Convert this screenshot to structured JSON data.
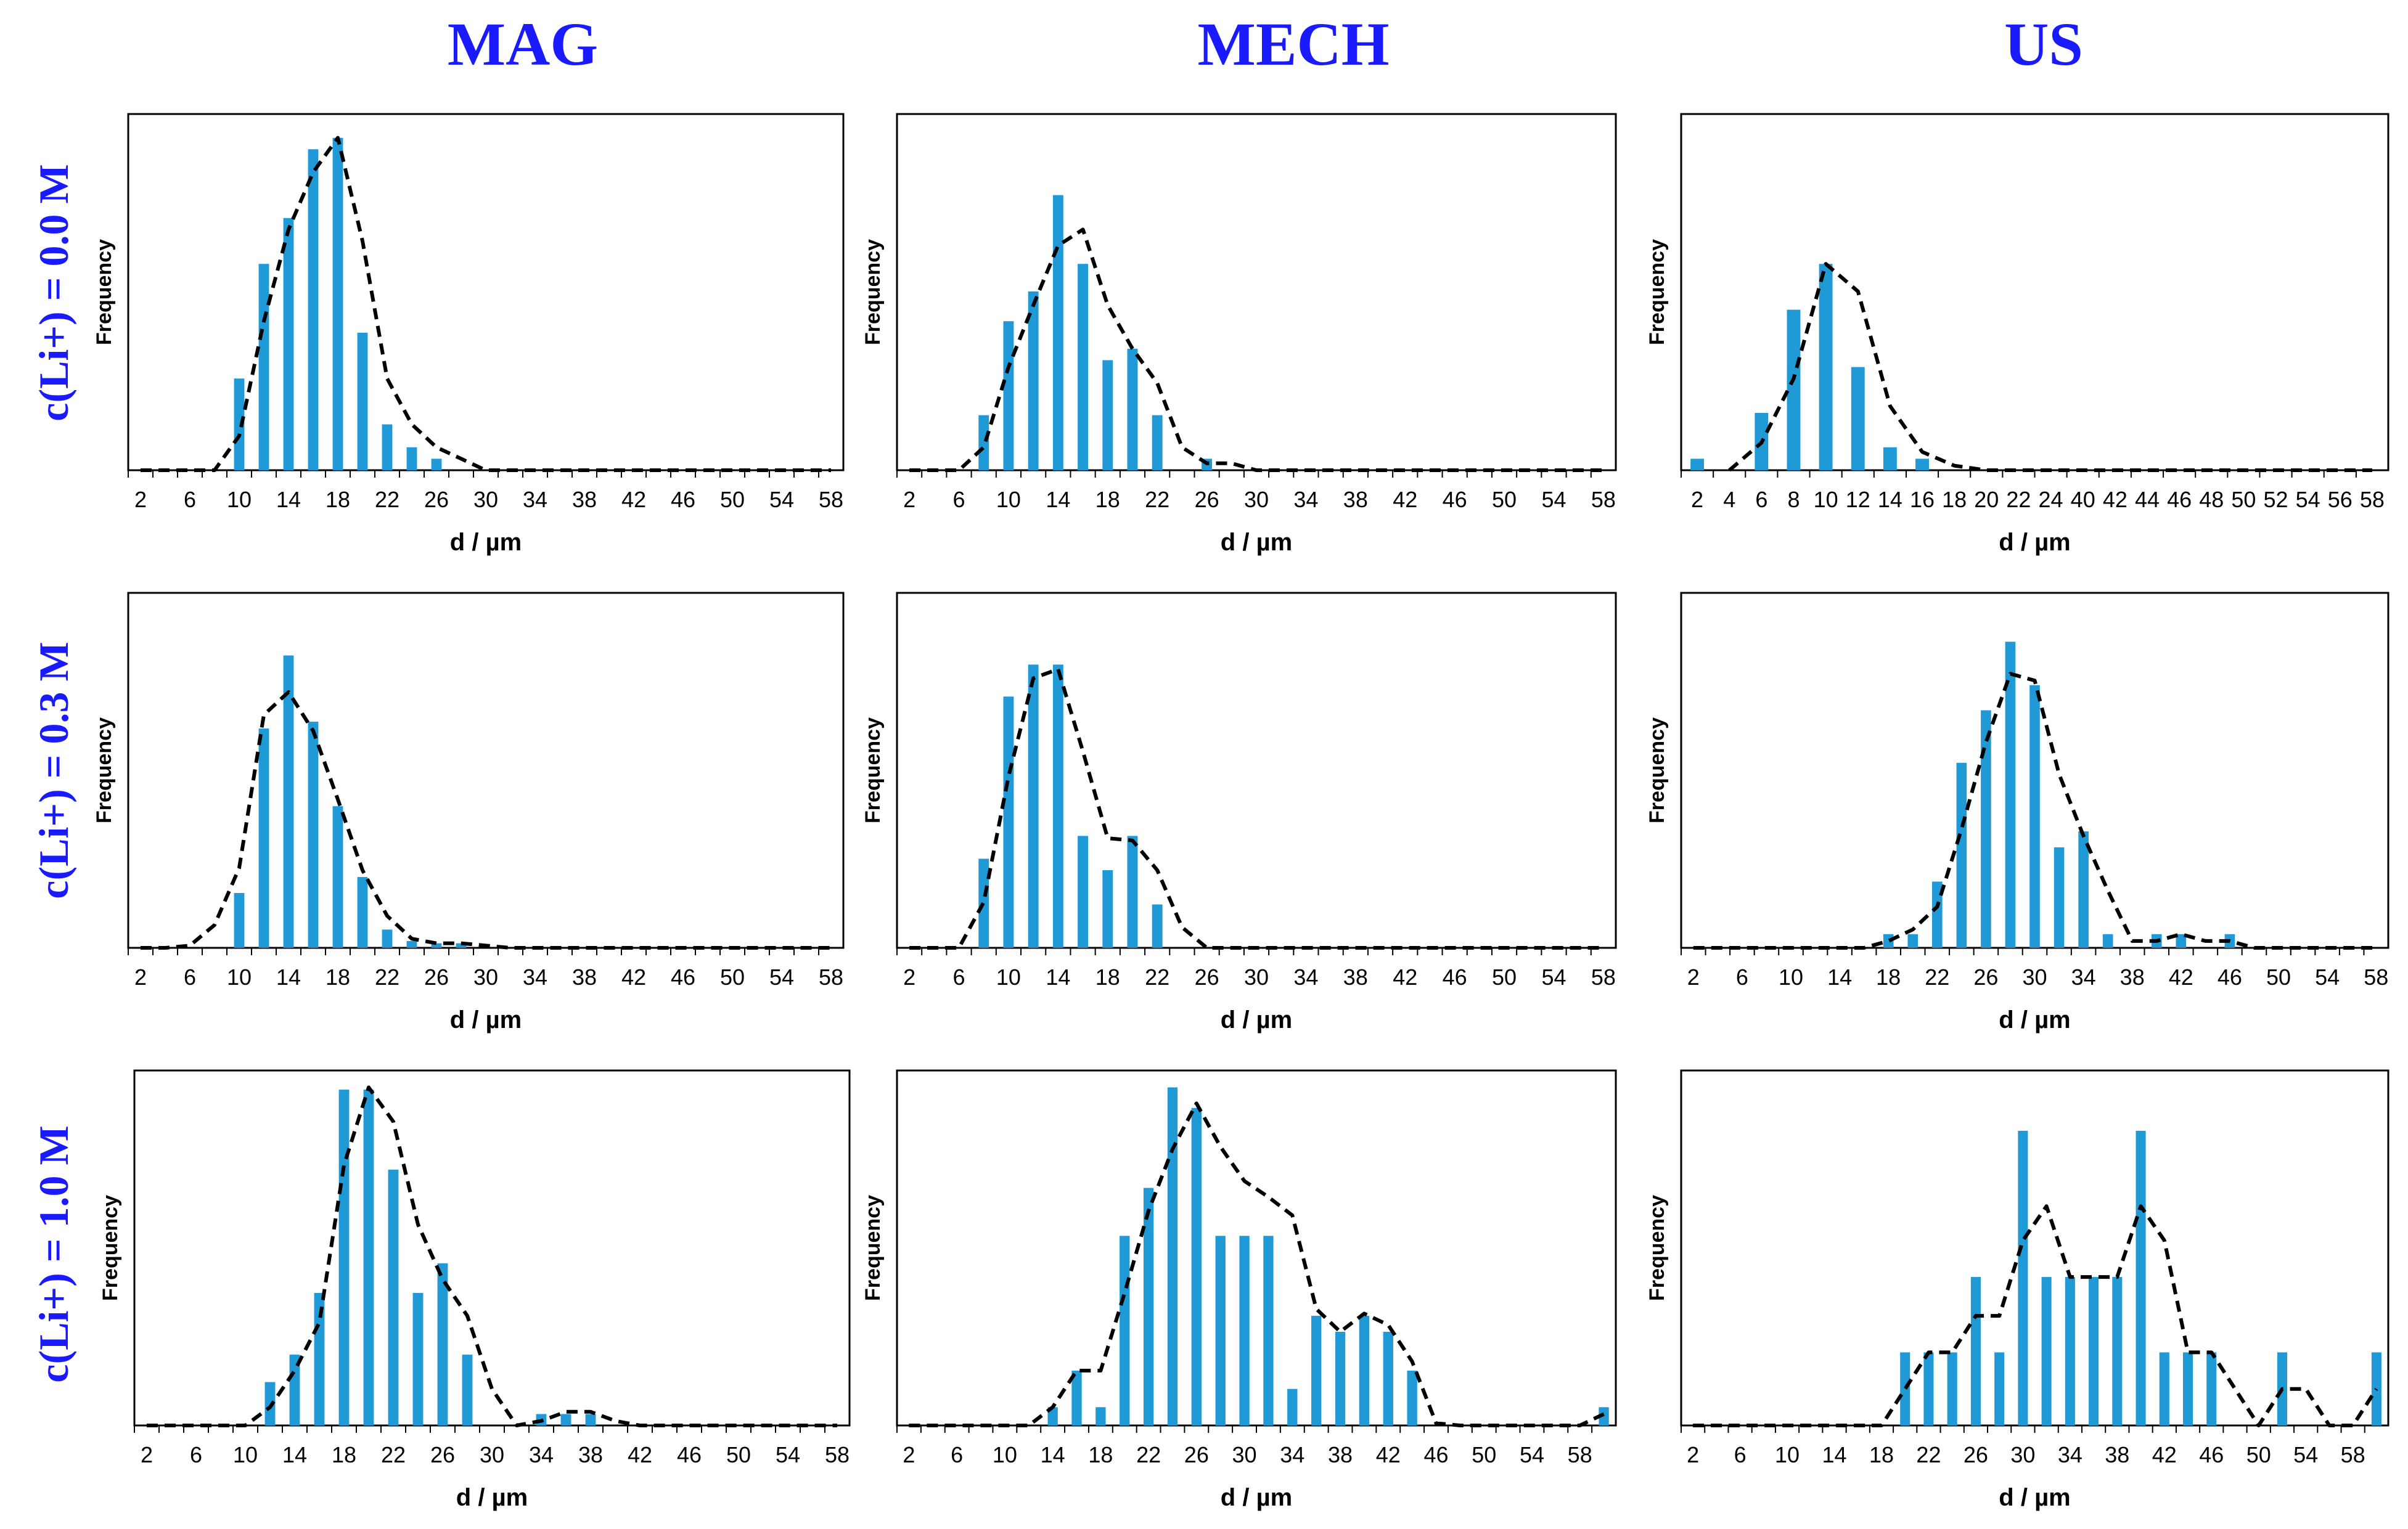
{
  "figure": {
    "column_titles": [
      "MAG",
      "MECH",
      "US"
    ],
    "row_titles": [
      "c(Li+) = 0.0 M",
      "c(Li+) = 0.3 M",
      "c(Li+) = 1.0 M"
    ],
    "colors": {
      "bar": "#1f9ad6",
      "curve": "#000000",
      "title": "#1a1aff",
      "axis": "#000000"
    }
  },
  "chart_data": [
    {
      "id": "mag-0.0",
      "type": "bar",
      "title": "MAG",
      "row_label": "c(Li+) = 0.0 M",
      "xlabel": "d / µm",
      "ylabel": "Frequency",
      "xticks": [
        "2",
        "6",
        "10",
        "14",
        "18",
        "22",
        "26",
        "30",
        "34",
        "38",
        "42",
        "46",
        "50",
        "54",
        "58"
      ],
      "categories": [
        2,
        4,
        6,
        8,
        10,
        12,
        14,
        16,
        18,
        20,
        22,
        24,
        26,
        28,
        30,
        32,
        34,
        36,
        38,
        40,
        42,
        44,
        46,
        48,
        50,
        52,
        54,
        56,
        58
      ],
      "ylim": [
        0,
        30
      ],
      "series": [
        {
          "name": "histogram",
          "values": [
            0,
            0,
            0,
            0,
            8,
            18,
            22,
            28,
            29,
            12,
            4,
            2,
            1,
            0,
            0,
            0,
            0,
            0,
            0,
            0,
            0,
            0,
            0,
            0,
            0,
            0,
            0,
            0,
            0
          ]
        },
        {
          "name": "distribution fit",
          "style": "dashed",
          "values": [
            0,
            0,
            0,
            0,
            3,
            13,
            21,
            26,
            29,
            20,
            8,
            4,
            2,
            1,
            0,
            0,
            0,
            0,
            0,
            0,
            0,
            0,
            0,
            0,
            0,
            0,
            0,
            0,
            0
          ]
        }
      ]
    },
    {
      "id": "mech-0.0",
      "type": "bar",
      "title": "MECH",
      "row_label": "c(Li+) = 0.0 M",
      "xlabel": "d / µm",
      "ylabel": "Frequency",
      "xticks": [
        "2",
        "6",
        "10",
        "14",
        "18",
        "22",
        "26",
        "30",
        "34",
        "38",
        "42",
        "46",
        "50",
        "54",
        "58"
      ],
      "categories": [
        2,
        4,
        6,
        8,
        10,
        12,
        14,
        16,
        18,
        20,
        22,
        24,
        26,
        28,
        30,
        32,
        34,
        36,
        38,
        40,
        42,
        44,
        46,
        48,
        50,
        52,
        54,
        56,
        58
      ],
      "ylim": [
        0,
        15
      ],
      "series": [
        {
          "name": "histogram",
          "values": [
            0,
            0,
            0,
            2.4,
            6.5,
            7.8,
            12,
            9,
            4.8,
            5.3,
            2.4,
            0,
            0.5,
            0,
            0,
            0,
            0,
            0,
            0,
            0,
            0,
            0,
            0,
            0,
            0,
            0,
            0,
            0,
            0
          ]
        },
        {
          "name": "distribution fit",
          "style": "dashed",
          "values": [
            0,
            0,
            0,
            1,
            4.5,
            7.2,
            9.8,
            10.5,
            7.2,
            5.3,
            3.8,
            1,
            0.3,
            0.3,
            0,
            0,
            0,
            0,
            0,
            0,
            0,
            0,
            0,
            0,
            0,
            0,
            0,
            0,
            0
          ]
        }
      ]
    },
    {
      "id": "us-0.0",
      "type": "bar",
      "title": "US",
      "row_label": "c(Li+) = 0.0 M",
      "xlabel": "d / µm",
      "ylabel": "Frequency",
      "xticks": [
        "2",
        "4",
        "6",
        "8",
        "10",
        "12",
        "14",
        "16",
        "18",
        "20",
        "22",
        "24",
        "40",
        "42",
        "44",
        "46",
        "48",
        "50",
        "52",
        "54",
        "56",
        "58"
      ],
      "categories": [
        2,
        4,
        6,
        8,
        10,
        12,
        14,
        16,
        18,
        20,
        22,
        24,
        40,
        42,
        44,
        46,
        48,
        50,
        52,
        54,
        56,
        58
      ],
      "ylim": [
        0,
        15
      ],
      "series": [
        {
          "name": "histogram",
          "values": [
            0.5,
            0,
            2.5,
            7,
            9,
            4.5,
            1,
            0.5,
            0,
            0,
            0,
            0,
            0,
            0,
            0,
            0,
            0,
            0,
            0,
            0,
            0,
            0
          ]
        },
        {
          "name": "distribution fit",
          "style": "dashed",
          "values": [
            null,
            0,
            1.2,
            4,
            9,
            7.8,
            2.8,
            0.8,
            0.2,
            0,
            0,
            0,
            0,
            0,
            0,
            0,
            0,
            0,
            0,
            0,
            0,
            0
          ]
        }
      ]
    },
    {
      "id": "mag-0.3",
      "type": "bar",
      "title": "MAG",
      "row_label": "c(Li+) = 0.3 M",
      "xlabel": "d / µm",
      "ylabel": "Frequency",
      "xticks": [
        "2",
        "6",
        "10",
        "14",
        "18",
        "22",
        "26",
        "30",
        "34",
        "38",
        "42",
        "46",
        "50",
        "54",
        "58"
      ],
      "categories": [
        2,
        4,
        6,
        8,
        10,
        12,
        14,
        16,
        18,
        20,
        22,
        24,
        26,
        28,
        30,
        32,
        34,
        36,
        38,
        40,
        42,
        44,
        46,
        48,
        50,
        52,
        54,
        56,
        58
      ],
      "ylim": [
        0,
        15
      ],
      "series": [
        {
          "name": "histogram",
          "values": [
            0,
            0,
            0,
            0,
            2.4,
            9.6,
            12.8,
            9.9,
            6.2,
            3.1,
            0.8,
            0.3,
            0.2,
            0.2,
            0,
            0,
            0,
            0,
            0,
            0,
            0,
            0,
            0,
            0,
            0,
            0,
            0,
            0,
            0
          ]
        },
        {
          "name": "distribution fit",
          "style": "dashed",
          "values": [
            0,
            0,
            0.1,
            1,
            3.5,
            10.2,
            11.2,
            9.5,
            6.5,
            3.4,
            1.4,
            0.4,
            0.2,
            0.2,
            0.1,
            0,
            0,
            0,
            0,
            0,
            0,
            0,
            0,
            0,
            0,
            0,
            0,
            0,
            0
          ]
        }
      ]
    },
    {
      "id": "mech-0.3",
      "type": "bar",
      "title": "MECH",
      "row_label": "c(Li+) = 0.3 M",
      "xlabel": "d / µm",
      "ylabel": "Frequency",
      "xticks": [
        "2",
        "6",
        "10",
        "14",
        "18",
        "22",
        "26",
        "30",
        "34",
        "38",
        "42",
        "46",
        "50",
        "54",
        "58"
      ],
      "categories": [
        2,
        4,
        6,
        8,
        10,
        12,
        14,
        16,
        18,
        20,
        22,
        24,
        26,
        28,
        30,
        32,
        34,
        36,
        38,
        40,
        42,
        44,
        46,
        48,
        50,
        52,
        54,
        56,
        58
      ],
      "ylim": [
        0,
        15
      ],
      "series": [
        {
          "name": "histogram",
          "values": [
            0,
            0,
            0,
            3.9,
            11,
            12.4,
            12.4,
            4.9,
            3.4,
            4.9,
            1.9,
            0,
            0,
            0,
            0,
            0,
            0,
            0,
            0,
            0,
            0,
            0,
            0,
            0,
            0,
            0,
            0,
            0,
            0
          ]
        },
        {
          "name": "distribution fit",
          "style": "dashed",
          "values": [
            0,
            0,
            0,
            2,
            7.5,
            11.8,
            12.2,
            8.6,
            4.8,
            4.7,
            3.4,
            0.9,
            0,
            0,
            0,
            0,
            0,
            0,
            0,
            0,
            0,
            0,
            0,
            0,
            0,
            0,
            0,
            0,
            0
          ]
        }
      ]
    },
    {
      "id": "us-0.3",
      "type": "bar",
      "title": "US",
      "row_label": "c(Li+) = 0.3 M",
      "xlabel": "d / µm",
      "ylabel": "Frequency",
      "xticks": [
        "2",
        "6",
        "10",
        "14",
        "18",
        "22",
        "26",
        "30",
        "34",
        "38",
        "42",
        "46",
        "50",
        "54",
        "58"
      ],
      "categories": [
        2,
        4,
        6,
        8,
        10,
        12,
        14,
        16,
        18,
        20,
        22,
        24,
        26,
        28,
        30,
        32,
        34,
        36,
        38,
        40,
        42,
        44,
        46,
        48,
        50,
        52,
        54,
        56,
        58
      ],
      "ylim": [
        0,
        15
      ],
      "series": [
        {
          "name": "histogram",
          "values": [
            0,
            0,
            0,
            0,
            0,
            0,
            0,
            0,
            0.6,
            0.6,
            2.9,
            8.1,
            10.4,
            13.4,
            11.5,
            4.4,
            5.1,
            0.6,
            0,
            0.6,
            0.6,
            0,
            0.6,
            0,
            0,
            0,
            0,
            0,
            0
          ]
        },
        {
          "name": "distribution fit",
          "style": "dashed",
          "values": [
            0,
            0,
            0,
            0,
            0,
            0,
            0,
            0,
            0.3,
            0.8,
            1.8,
            5.2,
            9,
            12,
            11.7,
            7.6,
            4.9,
            2.5,
            0.3,
            0.3,
            0.6,
            0.3,
            0.3,
            0,
            0,
            0,
            0,
            0,
            0
          ]
        }
      ]
    },
    {
      "id": "mag-1.0",
      "type": "bar",
      "title": "MAG",
      "row_label": "c(Li+) = 1.0 M",
      "xlabel": "d / µm",
      "ylabel": "Frequency",
      "xticks": [
        "2",
        "6",
        "10",
        "14",
        "18",
        "22",
        "26",
        "30",
        "34",
        "38",
        "42",
        "46",
        "50",
        "54",
        "58"
      ],
      "categories": [
        2,
        4,
        6,
        8,
        10,
        12,
        14,
        16,
        18,
        20,
        22,
        24,
        26,
        28,
        30,
        32,
        34,
        36,
        38,
        40,
        42,
        44,
        46,
        48,
        50,
        52,
        54,
        56,
        58
      ],
      "ylim": [
        0,
        15
      ],
      "series": [
        {
          "name": "histogram",
          "values": [
            0,
            0,
            0,
            0,
            0,
            1.9,
            3.1,
            5.8,
            14.7,
            14.7,
            11.2,
            5.8,
            7.1,
            3.1,
            0,
            0,
            0.5,
            0.5,
            0.5,
            0,
            0,
            0,
            0,
            0,
            0,
            0,
            0,
            0,
            0
          ]
        },
        {
          "name": "distribution fit",
          "style": "dashed",
          "values": [
            0,
            0,
            0,
            0,
            0,
            0.8,
            2.4,
            4.5,
            11.4,
            14.8,
            13.3,
            8.8,
            6.4,
            4.8,
            1.6,
            0,
            0.2,
            0.6,
            0.6,
            0.2,
            0,
            0,
            0,
            0,
            0,
            0,
            0,
            0,
            0
          ]
        }
      ]
    },
    {
      "id": "mech-1.0",
      "type": "bar",
      "title": "MECH",
      "row_label": "c(Li+) = 1.0 M",
      "xlabel": "d / µm",
      "ylabel": "Frequency",
      "xticks": [
        "2",
        "6",
        "10",
        "14",
        "18",
        "22",
        "26",
        "30",
        "34",
        "38",
        "42",
        "46",
        "50",
        "54",
        "58"
      ],
      "categories": [
        2,
        4,
        6,
        8,
        10,
        12,
        14,
        16,
        18,
        20,
        22,
        24,
        26,
        28,
        30,
        32,
        34,
        36,
        38,
        40,
        42,
        44,
        46,
        48,
        50,
        52,
        54,
        56,
        58,
        60
      ],
      "ylim": [
        0,
        15
      ],
      "series": [
        {
          "name": "histogram",
          "values": [
            0,
            0,
            0,
            0,
            0,
            0,
            0.8,
            2.4,
            0.8,
            8.3,
            10.4,
            14.8,
            13.9,
            8.3,
            8.3,
            8.3,
            1.6,
            4.8,
            4.1,
            4.8,
            4.1,
            2.4,
            0,
            0,
            0,
            0,
            0,
            0,
            0,
            0.8
          ]
        },
        {
          "name": "distribution fit",
          "style": "dashed",
          "values": [
            0,
            0,
            0,
            0,
            0,
            0,
            0.8,
            2.4,
            2.4,
            5.8,
            9.4,
            12.1,
            14.1,
            12.2,
            10.7,
            10,
            9.2,
            5.1,
            4.1,
            4.9,
            4.4,
            2.8,
            0.1,
            0,
            0,
            0,
            0,
            0,
            0,
            0.5
          ]
        }
      ]
    },
    {
      "id": "us-1.0",
      "type": "bar",
      "title": "US",
      "row_label": "c(Li+) = 1.0 M",
      "xlabel": "d / µm",
      "ylabel": "Frequency",
      "xticks": [
        "2",
        "6",
        "10",
        "14",
        "18",
        "22",
        "26",
        "30",
        "34",
        "38",
        "42",
        "46",
        "50",
        "54",
        "58"
      ],
      "categories": [
        2,
        4,
        6,
        8,
        10,
        12,
        14,
        16,
        18,
        20,
        22,
        24,
        26,
        28,
        30,
        32,
        34,
        36,
        38,
        40,
        42,
        44,
        46,
        48,
        50,
        52,
        54,
        56,
        58,
        60
      ],
      "ylim": [
        0,
        15
      ],
      "series": [
        {
          "name": "histogram",
          "values": [
            0,
            0,
            0,
            0,
            0,
            0,
            0,
            0,
            0,
            3.2,
            3.2,
            3.2,
            6.5,
            3.2,
            12.9,
            6.5,
            6.5,
            6.5,
            6.5,
            12.9,
            3.2,
            3.2,
            3.2,
            0,
            0,
            3.2,
            0,
            0,
            0,
            3.2
          ]
        },
        {
          "name": "distribution fit",
          "style": "dashed",
          "values": [
            0,
            0,
            0,
            0,
            0,
            0,
            0,
            0,
            0,
            1.6,
            3.2,
            3.2,
            4.8,
            4.8,
            8.1,
            9.6,
            6.5,
            6.5,
            6.5,
            9.6,
            8.1,
            3.2,
            3.2,
            1.6,
            0,
            1.6,
            1.6,
            0,
            0,
            1.6
          ]
        }
      ]
    }
  ]
}
